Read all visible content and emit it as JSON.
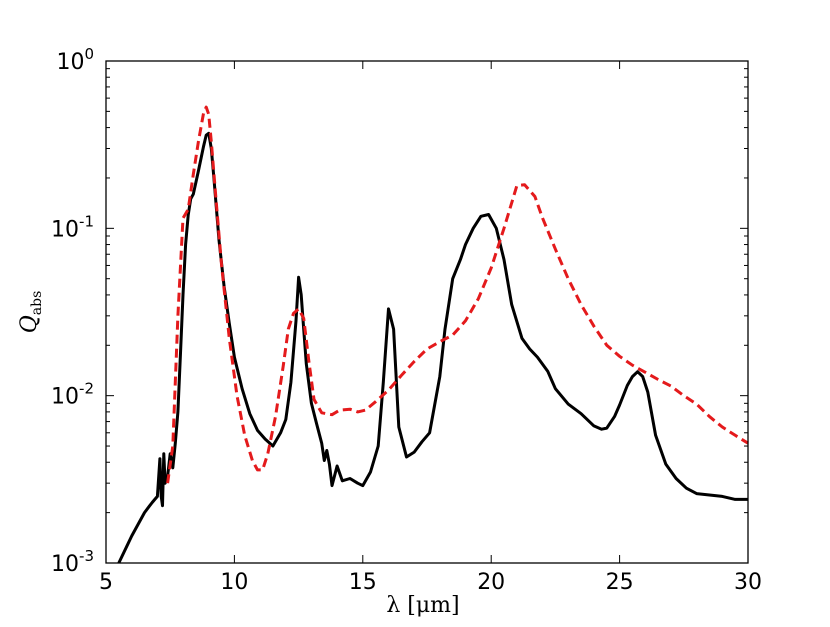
{
  "chart_data": {
    "type": "line",
    "title": "",
    "xlabel": "λ [μm]",
    "ylabel": "Q",
    "ylabel_sub": "abs",
    "xscale": "linear",
    "yscale": "log",
    "xlim": [
      5,
      30
    ],
    "ylim": [
      0.001,
      1
    ],
    "grid": false,
    "x_ticks": [
      {
        "value": 5,
        "label": "5"
      },
      {
        "value": 10,
        "label": "10"
      },
      {
        "value": 15,
        "label": "15"
      },
      {
        "value": 20,
        "label": "20"
      },
      {
        "value": 25,
        "label": "25"
      },
      {
        "value": 30,
        "label": "30"
      }
    ],
    "y_ticks": [
      {
        "value": 0.001,
        "base": "10",
        "exp": "-3"
      },
      {
        "value": 0.01,
        "base": "10",
        "exp": "-2"
      },
      {
        "value": 0.1,
        "base": "10",
        "exp": "-1"
      },
      {
        "value": 1,
        "base": "10",
        "exp": "0"
      }
    ],
    "series": [
      {
        "color": "#000000",
        "style": "solid",
        "x": [
          5.5,
          6.0,
          6.5,
          6.7,
          6.8,
          6.9,
          7.0,
          7.1,
          7.15,
          7.2,
          7.25,
          7.3,
          7.4,
          7.5,
          7.6,
          7.7,
          7.8,
          7.9,
          8.0,
          8.1,
          8.2,
          8.3,
          8.4,
          8.6,
          8.8,
          8.9,
          9.0,
          9.1,
          9.2,
          9.4,
          9.6,
          9.8,
          10.0,
          10.3,
          10.6,
          10.9,
          11.2,
          11.5,
          11.8,
          12.0,
          12.2,
          12.4,
          12.5,
          12.6,
          12.7,
          12.8,
          13.0,
          13.2,
          13.4,
          13.5,
          13.6,
          13.7,
          13.8,
          14.0,
          14.2,
          14.5,
          14.8,
          15.0,
          15.3,
          15.6,
          15.8,
          16.0,
          16.2,
          16.4,
          16.7,
          17.0,
          17.3,
          17.6,
          18.0,
          18.2,
          18.5,
          18.8,
          19.0,
          19.3,
          19.6,
          19.9,
          20.2,
          20.5,
          20.8,
          21.2,
          21.5,
          21.8,
          22.2,
          22.5,
          23.0,
          23.5,
          24.0,
          24.3,
          24.5,
          24.8,
          25.0,
          25.3,
          25.5,
          25.7,
          25.9,
          26.1,
          26.4,
          26.8,
          27.2,
          27.6,
          28.0,
          29.0,
          29.5,
          30.0
        ],
        "y": [
          0.001,
          0.00145,
          0.002,
          0.0022,
          0.0023,
          0.0024,
          0.0025,
          0.0042,
          0.0025,
          0.0022,
          0.0045,
          0.003,
          0.0033,
          0.0045,
          0.0037,
          0.0052,
          0.008,
          0.018,
          0.04,
          0.08,
          0.12,
          0.15,
          0.16,
          0.22,
          0.31,
          0.36,
          0.37,
          0.3,
          0.2,
          0.085,
          0.045,
          0.027,
          0.017,
          0.011,
          0.0078,
          0.0062,
          0.0055,
          0.005,
          0.006,
          0.0072,
          0.012,
          0.028,
          0.051,
          0.04,
          0.025,
          0.0155,
          0.009,
          0.0068,
          0.0052,
          0.0041,
          0.0047,
          0.0039,
          0.0029,
          0.0038,
          0.0031,
          0.0032,
          0.003,
          0.0029,
          0.0035,
          0.005,
          0.012,
          0.033,
          0.025,
          0.0065,
          0.0043,
          0.0046,
          0.0053,
          0.006,
          0.013,
          0.025,
          0.05,
          0.065,
          0.08,
          0.1,
          0.118,
          0.121,
          0.1,
          0.065,
          0.035,
          0.022,
          0.019,
          0.017,
          0.014,
          0.011,
          0.0089,
          0.0078,
          0.0066,
          0.0063,
          0.0064,
          0.0075,
          0.0088,
          0.0115,
          0.013,
          0.0139,
          0.013,
          0.0105,
          0.0058,
          0.0039,
          0.0032,
          0.0028,
          0.0026,
          0.0025,
          0.0024,
          0.0024
        ]
      },
      {
        "color": "#e41a1c",
        "style": "dashed",
        "x": [
          7.4,
          7.6,
          7.8,
          8.0,
          8.2,
          8.4,
          8.6,
          8.8,
          8.9,
          9.0,
          9.1,
          9.3,
          9.5,
          9.8,
          10.1,
          10.4,
          10.7,
          10.9,
          11.1,
          11.3,
          11.6,
          11.9,
          12.1,
          12.3,
          12.5,
          12.7,
          12.9,
          13.1,
          13.4,
          13.8,
          14.1,
          14.5,
          14.8,
          15.1,
          15.5,
          16.0,
          16.5,
          17.0,
          17.5,
          18.0,
          18.5,
          19.0,
          19.5,
          20.0,
          20.5,
          21.0,
          21.3,
          21.7,
          22.0,
          22.5,
          23.0,
          23.5,
          24.0,
          24.5,
          25.0,
          25.5,
          26.0,
          26.5,
          27.0,
          27.5,
          28.0,
          28.5,
          29.0,
          29.5,
          30.0
        ],
        "y": [
          0.003,
          0.005,
          0.03,
          0.115,
          0.13,
          0.21,
          0.33,
          0.49,
          0.53,
          0.48,
          0.33,
          0.14,
          0.06,
          0.022,
          0.01,
          0.0058,
          0.0041,
          0.0036,
          0.0036,
          0.0045,
          0.0075,
          0.015,
          0.025,
          0.031,
          0.033,
          0.029,
          0.016,
          0.0095,
          0.0079,
          0.0077,
          0.0082,
          0.0083,
          0.008,
          0.0082,
          0.0092,
          0.0108,
          0.0132,
          0.016,
          0.019,
          0.021,
          0.023,
          0.028,
          0.038,
          0.058,
          0.1,
          0.18,
          0.182,
          0.155,
          0.115,
          0.075,
          0.05,
          0.035,
          0.026,
          0.02,
          0.0172,
          0.0152,
          0.0138,
          0.0125,
          0.0114,
          0.01,
          0.0089,
          0.0075,
          0.0065,
          0.0058,
          0.0052
        ]
      }
    ]
  }
}
